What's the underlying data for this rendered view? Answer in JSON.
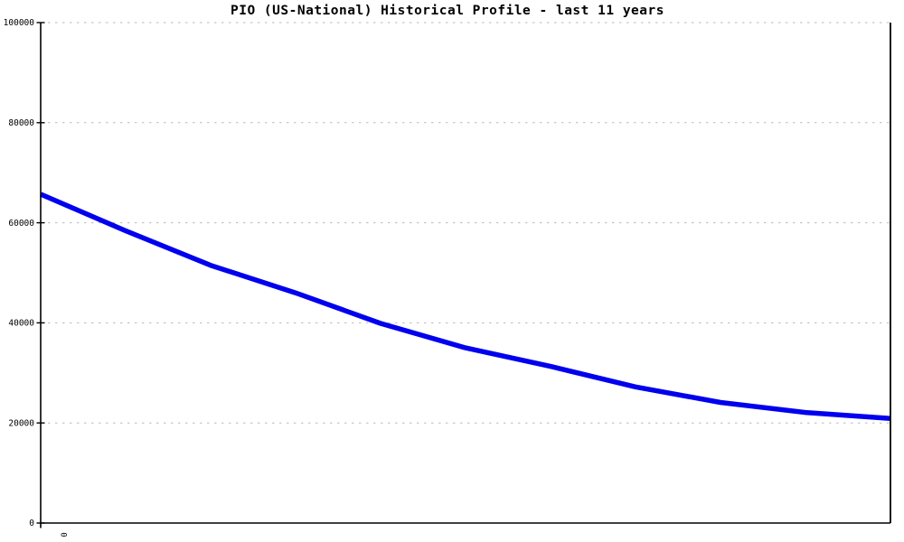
{
  "chart_data": {
    "type": "line",
    "title": "PIO (US-National) Historical Profile - last 11 years",
    "x": [
      0,
      1,
      2,
      3,
      4,
      5,
      6,
      7,
      8,
      9,
      10
    ],
    "xlabel": "",
    "ylabel": "",
    "ylim": [
      0,
      100000
    ],
    "yticks": [
      0,
      20000,
      40000,
      60000,
      80000,
      100000
    ],
    "ytick_labels": [
      "0",
      "20000",
      "40000",
      "60000",
      "80000",
      "100000"
    ],
    "xtick_labels": [
      "0"
    ],
    "grid": "horizontal-dashed",
    "legend_position": "none",
    "series": [
      {
        "name": "PIO (US-National)",
        "color": "#0000ee",
        "values": [
          65700,
          58400,
          51500,
          46000,
          39900,
          35000,
          31300,
          27200,
          24100,
          22100,
          20900
        ]
      }
    ]
  },
  "colors": {
    "line": "#0000ee",
    "grid": "#bababa",
    "axis": "#000000",
    "background": "#ffffff",
    "title_text": "#000000"
  }
}
